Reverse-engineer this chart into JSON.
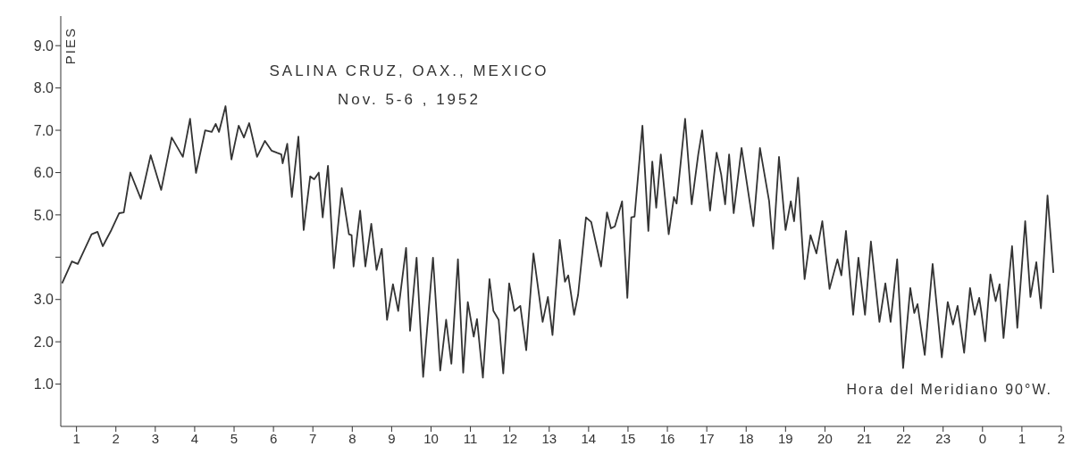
{
  "chart_data": {
    "type": "line",
    "title": "SALINA CRUZ, OAX., MEXICO",
    "subtitle": "Nov. 5-6 , 1952",
    "ylabel": "PIES",
    "xlabel": "Hora del Meridiano 90°W.",
    "xlim": [
      "1952-11-05T00:36",
      "1952-11-06T02:00"
    ],
    "ylim": [
      0,
      9.7
    ],
    "xticks": [
      {
        "value": "1952-11-05T01:00",
        "label": "1"
      },
      {
        "value": "1952-11-05T02:00",
        "label": "2"
      },
      {
        "value": "1952-11-05T03:00",
        "label": "3"
      },
      {
        "value": "1952-11-05T04:00",
        "label": "4"
      },
      {
        "value": "1952-11-05T05:00",
        "label": "5"
      },
      {
        "value": "1952-11-05T06:00",
        "label": "6"
      },
      {
        "value": "1952-11-05T07:00",
        "label": "7"
      },
      {
        "value": "1952-11-05T08:00",
        "label": "8"
      },
      {
        "value": "1952-11-05T09:00",
        "label": "9"
      },
      {
        "value": "1952-11-05T10:00",
        "label": "10"
      },
      {
        "value": "1952-11-05T11:00",
        "label": "11"
      },
      {
        "value": "1952-11-05T12:00",
        "label": "12"
      },
      {
        "value": "1952-11-05T13:00",
        "label": "13"
      },
      {
        "value": "1952-11-05T14:00",
        "label": "14"
      },
      {
        "value": "1952-11-05T15:00",
        "label": "15"
      },
      {
        "value": "1952-11-05T16:00",
        "label": "16"
      },
      {
        "value": "1952-11-05T17:00",
        "label": "17"
      },
      {
        "value": "1952-11-05T18:00",
        "label": "18"
      },
      {
        "value": "1952-11-05T19:00",
        "label": "19"
      },
      {
        "value": "1952-11-05T20:00",
        "label": "20"
      },
      {
        "value": "1952-11-05T21:00",
        "label": "21"
      },
      {
        "value": "1952-11-05T22:00",
        "label": "22"
      },
      {
        "value": "1952-11-05T23:00",
        "label": "23"
      },
      {
        "value": "1952-11-06T00:00",
        "label": "0"
      },
      {
        "value": "1952-11-06T01:00",
        "label": "1"
      },
      {
        "value": "1952-11-06T02:00",
        "label": "2"
      }
    ],
    "yticks": [
      {
        "value": 1,
        "label": "1.0"
      },
      {
        "value": 2,
        "label": "2.0"
      },
      {
        "value": 3,
        "label": "3.0"
      },
      {
        "value": 4,
        "label": null
      },
      {
        "value": 5,
        "label": "5.0"
      },
      {
        "value": 6,
        "label": "6.0"
      },
      {
        "value": 7,
        "label": "7.0"
      },
      {
        "value": 8,
        "label": "8.0"
      },
      {
        "value": 9,
        "label": "9.0"
      }
    ],
    "grid": false,
    "legend": false,
    "marker": "none",
    "line_style": "solid",
    "series": [
      {
        "color": "#333333",
        "x": [
          "1952-11-05T00:38",
          "1952-11-05T00:53",
          "1952-11-05T01:02",
          "1952-11-05T01:23",
          "1952-11-05T01:32",
          "1952-11-05T01:40",
          "1952-11-05T01:53",
          "1952-11-05T02:05",
          "1952-11-05T02:12",
          "1952-11-05T02:22",
          "1952-11-05T02:38",
          "1952-11-05T02:53",
          "1952-11-05T03:09",
          "1952-11-05T03:25",
          "1952-11-05T03:42",
          "1952-11-05T03:53",
          "1952-11-05T04:02",
          "1952-11-05T04:16",
          "1952-11-05T04:26",
          "1952-11-05T04:32",
          "1952-11-05T04:37",
          "1952-11-05T04:47",
          "1952-11-05T04:56",
          "1952-11-05T05:07",
          "1952-11-05T05:15",
          "1952-11-05T05:23",
          "1952-11-05T05:35",
          "1952-11-05T05:47",
          "1952-11-05T05:57",
          "1952-11-05T06:05",
          "1952-11-05T06:12",
          "1952-11-05T06:14",
          "1952-11-05T06:21",
          "1952-11-05T06:28",
          "1952-11-05T06:38",
          "1952-11-05T06:46",
          "1952-11-05T06:56",
          "1952-11-05T07:02",
          "1952-11-05T07:09",
          "1952-11-05T07:15",
          "1952-11-05T07:23",
          "1952-11-05T07:32",
          "1952-11-05T07:44",
          "1952-11-05T07:55",
          "1952-11-05T07:59",
          "1952-11-05T08:02",
          "1952-11-05T08:12",
          "1952-11-05T08:20",
          "1952-11-05T08:29",
          "1952-11-05T08:37",
          "1952-11-05T08:45",
          "1952-11-05T08:53",
          "1952-11-05T09:02",
          "1952-11-05T09:10",
          "1952-11-05T09:22",
          "1952-11-05T09:28",
          "1952-11-05T09:38",
          "1952-11-05T09:48",
          "1952-11-05T10:03",
          "1952-11-05T10:14",
          "1952-11-05T10:23",
          "1952-11-05T10:31",
          "1952-11-05T10:41",
          "1952-11-05T10:49",
          "1952-11-05T10:56",
          "1952-11-05T11:05",
          "1952-11-05T11:10",
          "1952-11-05T11:19",
          "1952-11-05T11:29",
          "1952-11-05T11:35",
          "1952-11-05T11:43",
          "1952-11-05T11:50",
          "1952-11-05T11:59",
          "1952-11-05T12:07",
          "1952-11-05T12:16",
          "1952-11-05T12:25",
          "1952-11-05T12:36",
          "1952-11-05T12:50",
          "1952-11-05T12:58",
          "1952-11-05T13:05",
          "1952-11-05T13:16",
          "1952-11-05T13:24",
          "1952-11-05T13:29",
          "1952-11-05T13:38",
          "1952-11-05T13:44",
          "1952-11-05T13:56",
          "1952-11-05T14:04",
          "1952-11-05T14:19",
          "1952-11-05T14:28",
          "1952-11-05T14:34",
          "1952-11-05T14:40",
          "1952-11-05T14:51",
          "1952-11-05T14:59",
          "1952-11-05T15:05",
          "1952-11-05T15:10",
          "1952-11-05T15:22",
          "1952-11-05T15:31",
          "1952-11-05T15:37",
          "1952-11-05T15:43",
          "1952-11-05T15:50",
          "1952-11-05T16:02",
          "1952-11-05T16:10",
          "1952-11-05T16:14",
          "1952-11-05T16:27",
          "1952-11-05T16:37",
          "1952-11-05T16:47",
          "1952-11-05T16:53",
          "1952-11-05T17:05",
          "1952-11-05T17:15",
          "1952-11-05T17:22",
          "1952-11-05T17:28",
          "1952-11-05T17:34",
          "1952-11-05T17:41",
          "1952-11-05T17:53",
          "1952-11-05T18:11",
          "1952-11-05T18:21",
          "1952-11-05T18:35",
          "1952-11-05T18:41",
          "1952-11-05T18:50",
          "1952-11-05T19:00",
          "1952-11-05T19:08",
          "1952-11-05T19:13",
          "1952-11-05T19:19",
          "1952-11-05T19:29",
          "1952-11-05T19:38",
          "1952-11-05T19:47",
          "1952-11-05T19:56",
          "1952-11-05T20:07",
          "1952-11-05T20:19",
          "1952-11-05T20:25",
          "1952-11-05T20:32",
          "1952-11-05T20:43",
          "1952-11-05T20:51",
          "1952-11-05T21:01",
          "1952-11-05T21:10",
          "1952-11-05T21:23",
          "1952-11-05T21:32",
          "1952-11-05T21:40",
          "1952-11-05T21:50",
          "1952-11-05T21:59",
          "1952-11-05T22:10",
          "1952-11-05T22:16",
          "1952-11-05T22:21",
          "1952-11-05T22:32",
          "1952-11-05T22:44",
          "1952-11-05T22:58",
          "1952-11-05T23:07",
          "1952-11-05T23:15",
          "1952-11-05T23:22",
          "1952-11-05T23:32",
          "1952-11-05T23:41",
          "1952-11-05T23:48",
          "1952-11-05T23:55",
          "1952-11-05T23:58",
          "1952-11-06T00:04",
          "1952-11-06T00:12",
          "1952-11-06T00:20",
          "1952-11-06T00:26",
          "1952-11-06T00:32",
          "1952-11-06T00:45",
          "1952-11-06T00:53",
          "1952-11-06T01:05",
          "1952-11-06T01:13",
          "1952-11-06T01:22",
          "1952-11-06T01:29",
          "1952-11-06T01:39",
          "1952-11-06T01:48"
        ],
        "values": [
          3.38,
          3.9,
          3.84,
          4.54,
          4.6,
          4.26,
          4.64,
          5.04,
          5.06,
          6.0,
          5.38,
          6.41,
          5.59,
          6.83,
          6.37,
          7.27,
          5.99,
          7.0,
          6.96,
          7.15,
          6.96,
          7.57,
          6.31,
          7.11,
          6.83,
          7.17,
          6.37,
          6.75,
          6.52,
          6.47,
          6.43,
          6.22,
          6.68,
          5.42,
          6.85,
          4.64,
          5.91,
          5.84,
          6.0,
          4.94,
          6.16,
          3.74,
          5.63,
          4.54,
          4.52,
          3.78,
          5.1,
          3.78,
          4.79,
          3.7,
          4.2,
          2.52,
          3.36,
          2.73,
          4.22,
          2.26,
          3.99,
          1.17,
          3.99,
          1.32,
          2.52,
          1.48,
          3.95,
          1.27,
          2.94,
          2.12,
          2.54,
          1.15,
          3.48,
          2.73,
          2.52,
          1.25,
          3.38,
          2.73,
          2.85,
          1.8,
          4.09,
          2.47,
          3.06,
          2.16,
          4.41,
          3.42,
          3.57,
          2.64,
          3.11,
          4.94,
          4.83,
          3.78,
          5.06,
          4.68,
          4.73,
          5.32,
          3.04,
          4.94,
          4.96,
          7.11,
          4.62,
          6.26,
          5.17,
          6.43,
          4.54,
          5.42,
          5.27,
          7.27,
          5.25,
          6.43,
          7.0,
          5.1,
          6.47,
          5.95,
          5.25,
          6.43,
          5.04,
          6.58,
          4.73,
          6.58,
          5.32,
          4.2,
          6.37,
          4.64,
          5.32,
          4.85,
          5.88,
          3.48,
          4.52,
          4.09,
          4.85,
          3.25,
          3.95,
          3.57,
          4.62,
          2.64,
          3.99,
          2.64,
          4.37,
          2.47,
          3.38,
          2.47,
          3.95,
          1.38,
          3.27,
          2.68,
          2.89,
          1.69,
          3.84,
          1.63,
          2.94,
          2.41,
          2.85,
          1.74,
          3.27,
          2.64,
          3.04,
          2.73,
          2.01,
          3.59,
          2.96,
          3.36,
          2.09,
          4.26,
          2.33,
          4.85,
          3.06,
          3.88,
          2.79,
          5.46,
          3.63
        ]
      }
    ]
  }
}
